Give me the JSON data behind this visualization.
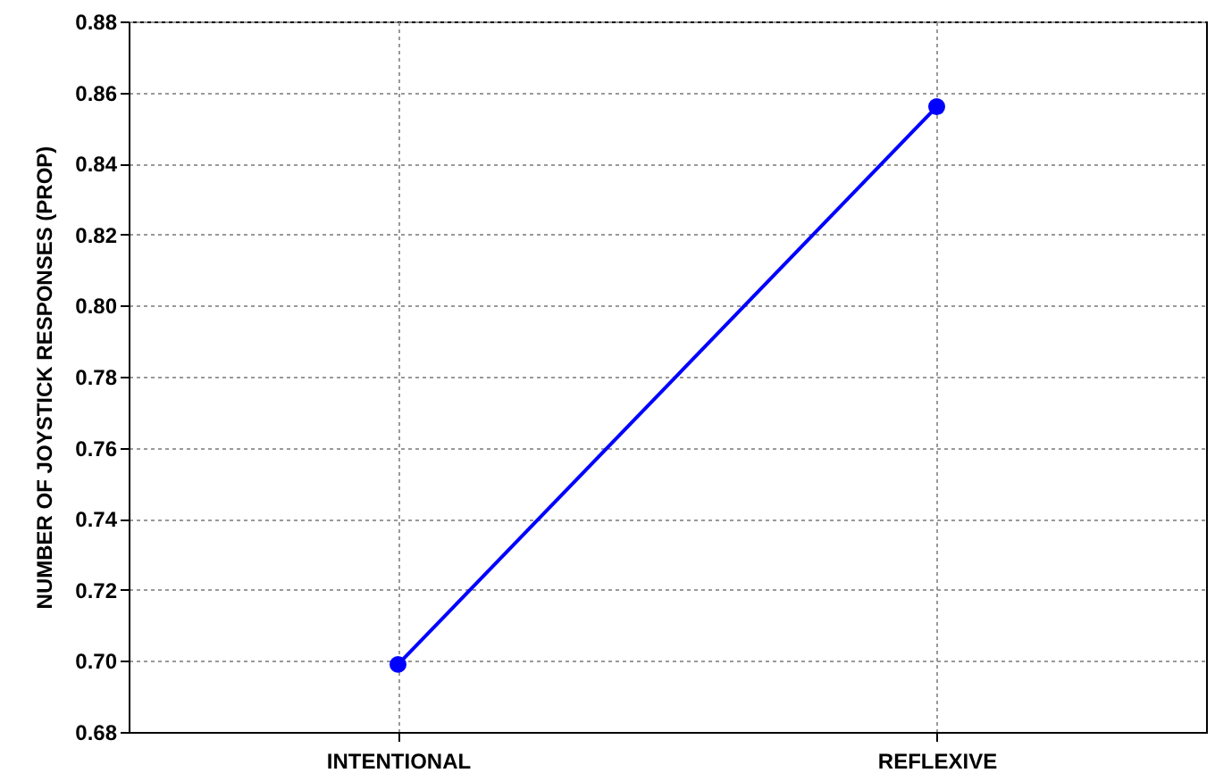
{
  "chart_data": {
    "type": "line",
    "ylabel": "NUMBER OF JOYSTICK RESPONSES (PROP)",
    "categories": [
      "INTENTIONAL",
      "REFLEXIVE"
    ],
    "series": [
      {
        "color": "#0000ff",
        "values": [
          0.699,
          0.856
        ]
      }
    ],
    "ylim": [
      0.68,
      0.88
    ],
    "yticks": [
      0.68,
      {
        "value": 0.7,
        "label": "0.70"
      },
      0.72,
      0.74,
      0.76,
      0.78,
      {
        "value": 0.8,
        "label": "0.80"
      },
      0.82,
      0.84,
      0.86,
      0.88
    ],
    "grid": true,
    "marker": "circle",
    "line_style": "solid"
  }
}
